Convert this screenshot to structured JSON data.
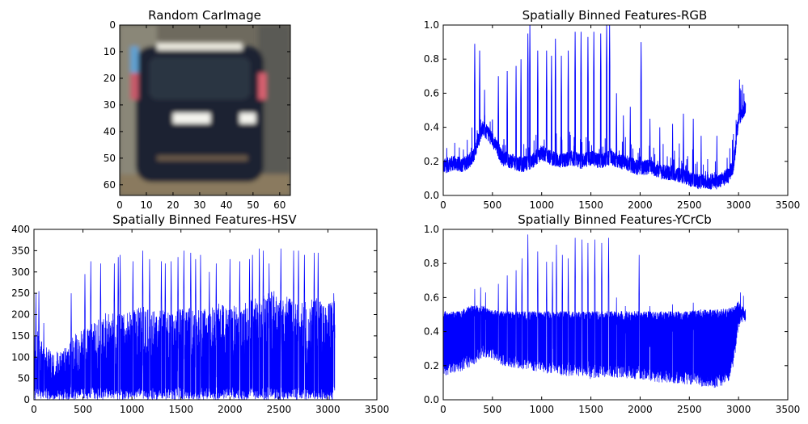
{
  "chart_data": [
    {
      "id": "car",
      "type": "image",
      "title": "Random CarImage",
      "xlim": [
        0,
        64
      ],
      "ylim": [
        64,
        0
      ],
      "xticks": [
        0,
        10,
        20,
        30,
        40,
        50,
        60
      ],
      "yticks": [
        0,
        10,
        20,
        30,
        40,
        50,
        60
      ],
      "image_description_values": {
        "background_color": "#6e6a5e",
        "car_body_color": "#1e2430",
        "window_color": "#2b3442",
        "tail_light_color": "#f4f4ee",
        "roof_highlight_color": "#e8e6dc",
        "road_color": "#8a7a5e"
      }
    },
    {
      "id": "rgb",
      "type": "line",
      "title": "Spatially Binned Features-RGB",
      "color": "#0000ff",
      "xlim": [
        0,
        3500
      ],
      "ylim": [
        0,
        1.0
      ],
      "xticks": [
        0,
        500,
        1000,
        1500,
        2000,
        2500,
        3000,
        3500
      ],
      "yticks": [
        0.0,
        0.2,
        0.4,
        0.6,
        0.8,
        1.0
      ],
      "ytick_labels": [
        "0.0",
        "0.2",
        "0.4",
        "0.6",
        "0.8",
        "1.0"
      ],
      "n_points": 3072,
      "envelope": {
        "x": [
          0,
          100,
          200,
          300,
          400,
          500,
          600,
          700,
          800,
          900,
          1000,
          1100,
          1200,
          1300,
          1400,
          1500,
          1600,
          1700,
          1800,
          1900,
          2000,
          2100,
          2200,
          2300,
          2400,
          2500,
          2600,
          2700,
          2800,
          2900,
          2950,
          3000,
          3072
        ],
        "base": [
          0.17,
          0.19,
          0.18,
          0.22,
          0.4,
          0.33,
          0.22,
          0.2,
          0.18,
          0.2,
          0.25,
          0.22,
          0.2,
          0.22,
          0.2,
          0.22,
          0.2,
          0.22,
          0.2,
          0.18,
          0.16,
          0.17,
          0.14,
          0.13,
          0.12,
          0.1,
          0.08,
          0.08,
          0.08,
          0.12,
          0.18,
          0.45,
          0.52
        ]
      },
      "peaks": [
        {
          "x": 320,
          "y": 0.89
        },
        {
          "x": 370,
          "y": 0.85
        },
        {
          "x": 420,
          "y": 0.62
        },
        {
          "x": 560,
          "y": 0.7
        },
        {
          "x": 650,
          "y": 0.73
        },
        {
          "x": 740,
          "y": 0.76
        },
        {
          "x": 790,
          "y": 0.8
        },
        {
          "x": 860,
          "y": 0.95
        },
        {
          "x": 880,
          "y": 1.0
        },
        {
          "x": 960,
          "y": 0.85
        },
        {
          "x": 1050,
          "y": 0.85
        },
        {
          "x": 1100,
          "y": 0.82
        },
        {
          "x": 1140,
          "y": 0.92
        },
        {
          "x": 1200,
          "y": 0.82
        },
        {
          "x": 1270,
          "y": 0.85
        },
        {
          "x": 1340,
          "y": 0.96
        },
        {
          "x": 1400,
          "y": 0.96
        },
        {
          "x": 1470,
          "y": 0.93
        },
        {
          "x": 1530,
          "y": 0.96
        },
        {
          "x": 1600,
          "y": 0.95
        },
        {
          "x": 1660,
          "y": 1.0
        },
        {
          "x": 1690,
          "y": 1.0
        },
        {
          "x": 1760,
          "y": 0.6
        },
        {
          "x": 1830,
          "y": 0.47
        },
        {
          "x": 1900,
          "y": 0.52
        },
        {
          "x": 2010,
          "y": 0.9
        },
        {
          "x": 2100,
          "y": 0.45
        },
        {
          "x": 2200,
          "y": 0.4
        },
        {
          "x": 2330,
          "y": 0.42
        },
        {
          "x": 2440,
          "y": 0.48
        },
        {
          "x": 2540,
          "y": 0.45
        },
        {
          "x": 2620,
          "y": 0.35
        },
        {
          "x": 2780,
          "y": 0.35
        },
        {
          "x": 3010,
          "y": 0.68
        },
        {
          "x": 3040,
          "y": 0.65
        }
      ]
    },
    {
      "id": "hsv",
      "type": "line",
      "title": "Spatially Binned Features-HSV",
      "color": "#0000ff",
      "xlim": [
        0,
        3500
      ],
      "ylim": [
        0,
        400
      ],
      "xticks": [
        0,
        500,
        1000,
        1500,
        2000,
        2500,
        3000,
        3500
      ],
      "yticks": [
        0,
        50,
        100,
        150,
        200,
        250,
        300,
        350,
        400
      ],
      "n_points": 3072,
      "envelope": {
        "x": [
          0,
          100,
          200,
          300,
          400,
          500,
          600,
          700,
          800,
          900,
          1000,
          1100,
          1200,
          1300,
          1400,
          1500,
          1600,
          1700,
          1800,
          1900,
          2000,
          2100,
          2200,
          2300,
          2400,
          2500,
          2600,
          2700,
          2800,
          2900,
          2950,
          3000,
          3072
        ],
        "base": [
          180,
          130,
          110,
          120,
          150,
          170,
          180,
          200,
          210,
          200,
          210,
          220,
          210,
          215,
          200,
          215,
          220,
          210,
          220,
          230,
          220,
          230,
          240,
          240,
          260,
          250,
          240,
          230,
          235,
          240,
          235,
          230,
          240
        ]
      },
      "peaks": [
        {
          "x": 20,
          "y": 250
        },
        {
          "x": 50,
          "y": 255
        },
        {
          "x": 100,
          "y": 180
        },
        {
          "x": 380,
          "y": 250
        },
        {
          "x": 520,
          "y": 295
        },
        {
          "x": 580,
          "y": 325
        },
        {
          "x": 680,
          "y": 320
        },
        {
          "x": 820,
          "y": 320
        },
        {
          "x": 860,
          "y": 335
        },
        {
          "x": 880,
          "y": 340
        },
        {
          "x": 1010,
          "y": 325
        },
        {
          "x": 1110,
          "y": 350
        },
        {
          "x": 1180,
          "y": 330
        },
        {
          "x": 1300,
          "y": 325
        },
        {
          "x": 1340,
          "y": 320
        },
        {
          "x": 1400,
          "y": 325
        },
        {
          "x": 1470,
          "y": 335
        },
        {
          "x": 1530,
          "y": 350
        },
        {
          "x": 1600,
          "y": 345
        },
        {
          "x": 1650,
          "y": 330
        },
        {
          "x": 1700,
          "y": 340
        },
        {
          "x": 1790,
          "y": 300
        },
        {
          "x": 1860,
          "y": 320
        },
        {
          "x": 2000,
          "y": 330
        },
        {
          "x": 2100,
          "y": 325
        },
        {
          "x": 2200,
          "y": 330
        },
        {
          "x": 2230,
          "y": 340
        },
        {
          "x": 2300,
          "y": 355
        },
        {
          "x": 2340,
          "y": 350
        },
        {
          "x": 2400,
          "y": 320
        },
        {
          "x": 2520,
          "y": 355
        },
        {
          "x": 2650,
          "y": 350
        },
        {
          "x": 2700,
          "y": 350
        },
        {
          "x": 2760,
          "y": 340
        },
        {
          "x": 2860,
          "y": 345
        },
        {
          "x": 2900,
          "y": 345
        },
        {
          "x": 3060,
          "y": 250
        }
      ],
      "end_x": 3072
    },
    {
      "id": "ycrcb",
      "type": "line",
      "title": "Spatially Binned Features-YCrCb",
      "color": "#0000ff",
      "xlim": [
        0,
        3500
      ],
      "ylim": [
        0,
        1.0
      ],
      "xticks": [
        0,
        500,
        1000,
        1500,
        2000,
        2500,
        3000,
        3500
      ],
      "yticks": [
        0.0,
        0.2,
        0.4,
        0.6,
        0.8,
        1.0
      ],
      "ytick_labels": [
        "0.0",
        "0.2",
        "0.4",
        "0.6",
        "0.8",
        "1.0"
      ],
      "n_points": 3072,
      "envelope": {
        "x": [
          0,
          100,
          200,
          300,
          400,
          500,
          600,
          700,
          800,
          900,
          1000,
          1100,
          1200,
          1300,
          1400,
          1500,
          1600,
          1700,
          1800,
          1900,
          2000,
          2100,
          2200,
          2300,
          2400,
          2500,
          2600,
          2700,
          2800,
          2900,
          2950,
          3000,
          3072
        ],
        "upper": [
          0.52,
          0.52,
          0.53,
          0.56,
          0.55,
          0.53,
          0.52,
          0.52,
          0.52,
          0.52,
          0.52,
          0.52,
          0.52,
          0.52,
          0.52,
          0.52,
          0.52,
          0.52,
          0.52,
          0.52,
          0.52,
          0.52,
          0.52,
          0.52,
          0.52,
          0.52,
          0.53,
          0.53,
          0.53,
          0.54,
          0.55,
          0.58,
          0.52
        ],
        "lower": [
          0.14,
          0.15,
          0.17,
          0.2,
          0.25,
          0.24,
          0.2,
          0.19,
          0.18,
          0.17,
          0.16,
          0.15,
          0.14,
          0.14,
          0.13,
          0.12,
          0.13,
          0.13,
          0.13,
          0.12,
          0.12,
          0.11,
          0.1,
          0.1,
          0.09,
          0.09,
          0.08,
          0.07,
          0.07,
          0.1,
          0.2,
          0.42,
          0.46
        ]
      },
      "peaks": [
        {
          "x": 320,
          "y": 0.65
        },
        {
          "x": 380,
          "y": 0.66
        },
        {
          "x": 430,
          "y": 0.63
        },
        {
          "x": 560,
          "y": 0.68
        },
        {
          "x": 650,
          "y": 0.73
        },
        {
          "x": 740,
          "y": 0.76
        },
        {
          "x": 800,
          "y": 0.83
        },
        {
          "x": 860,
          "y": 0.97
        },
        {
          "x": 960,
          "y": 0.87
        },
        {
          "x": 1050,
          "y": 0.81
        },
        {
          "x": 1110,
          "y": 0.81
        },
        {
          "x": 1150,
          "y": 0.91
        },
        {
          "x": 1210,
          "y": 0.85
        },
        {
          "x": 1270,
          "y": 0.83
        },
        {
          "x": 1340,
          "y": 0.95
        },
        {
          "x": 1410,
          "y": 0.94
        },
        {
          "x": 1470,
          "y": 0.92
        },
        {
          "x": 1540,
          "y": 0.94
        },
        {
          "x": 1610,
          "y": 0.92
        },
        {
          "x": 1680,
          "y": 0.95
        },
        {
          "x": 1760,
          "y": 0.6
        },
        {
          "x": 1850,
          "y": 0.55
        },
        {
          "x": 1990,
          "y": 0.85
        },
        {
          "x": 2100,
          "y": 0.55
        },
        {
          "x": 2330,
          "y": 0.56
        },
        {
          "x": 2540,
          "y": 0.57
        },
        {
          "x": 3020,
          "y": 0.63
        },
        {
          "x": 3050,
          "y": 0.61
        }
      ]
    }
  ]
}
